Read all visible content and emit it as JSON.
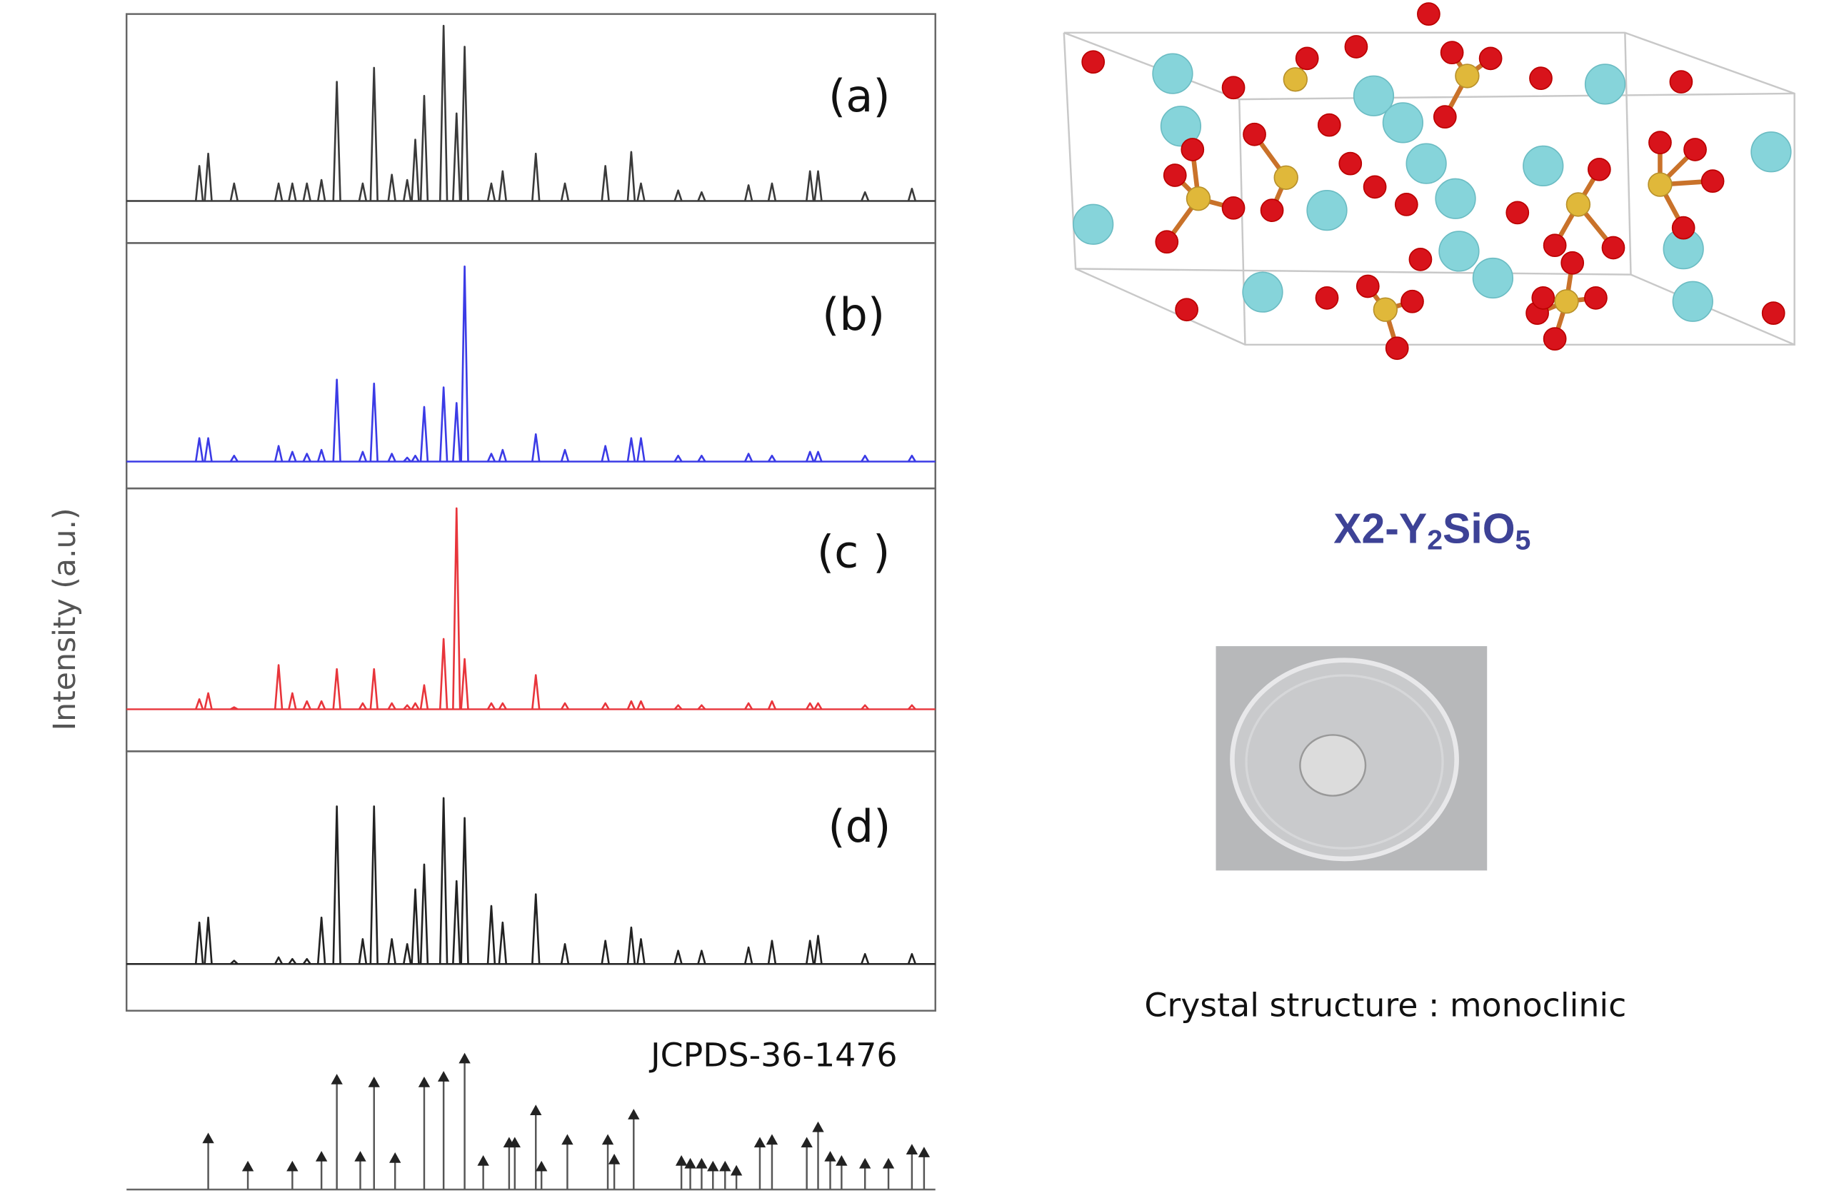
{
  "chart_data": {
    "type": "spectrum",
    "ylabel": "Intensity (a.u.)",
    "xlim": [
      0,
      100
    ],
    "ylim": [
      0,
      100
    ],
    "series": [
      {
        "name": "(a)",
        "color": "#3a3a3a",
        "x": [
          9.0,
          10.1,
          13.3,
          18.8,
          20.5,
          22.3,
          24.1,
          26.0,
          29.2,
          30.6,
          32.8,
          34.7,
          35.7,
          36.8,
          39.2,
          40.8,
          41.8,
          45.1,
          46.5,
          50.6,
          54.2,
          59.2,
          62.4,
          63.6,
          68.2,
          71.1,
          76.9,
          79.8,
          84.5,
          85.5,
          91.3,
          97.1
        ],
        "values": [
          20,
          27,
          10,
          10,
          10,
          10,
          12,
          68,
          10,
          76,
          15,
          12,
          35,
          60,
          100,
          50,
          88,
          10,
          17,
          27,
          10,
          20,
          28,
          10,
          6,
          5,
          9,
          10,
          17,
          17,
          5,
          7
        ]
      },
      {
        "name": "(b)",
        "color": "#3b3be6",
        "x": [
          9.0,
          10.1,
          13.3,
          18.8,
          20.5,
          22.3,
          24.1,
          26.0,
          29.2,
          30.6,
          32.8,
          34.7,
          35.7,
          36.8,
          39.2,
          40.8,
          41.8,
          45.1,
          46.5,
          50.6,
          54.2,
          59.2,
          62.4,
          63.6,
          68.2,
          71.1,
          76.9,
          79.8,
          84.5,
          85.5,
          91.3,
          97.1
        ],
        "values": [
          12,
          12,
          3,
          8,
          5,
          4,
          6,
          42,
          5,
          40,
          4,
          2,
          3,
          28,
          38,
          30,
          100,
          4,
          6,
          14,
          6,
          8,
          12,
          12,
          3,
          3,
          4,
          3,
          5,
          5,
          3,
          3
        ]
      },
      {
        "name": "(c )",
        "color": "#e8353b",
        "x": [
          9.0,
          10.1,
          13.3,
          18.8,
          20.5,
          22.3,
          24.1,
          26.0,
          29.2,
          30.6,
          32.8,
          34.7,
          35.7,
          36.8,
          39.2,
          40.8,
          41.8,
          45.1,
          46.5,
          50.6,
          54.2,
          59.2,
          62.4,
          63.6,
          68.2,
          71.1,
          76.9,
          79.8,
          84.5,
          85.5,
          91.3,
          97.1
        ],
        "values": [
          5,
          8,
          1,
          22,
          8,
          4,
          4,
          20,
          3,
          20,
          3,
          2,
          3,
          12,
          35,
          100,
          25,
          3,
          3,
          17,
          3,
          3,
          4,
          4,
          2,
          2,
          3,
          4,
          3,
          3,
          2,
          2
        ]
      },
      {
        "name": "(d)",
        "color": "#222222",
        "x": [
          9.0,
          10.1,
          13.3,
          18.8,
          20.5,
          22.3,
          24.1,
          26.0,
          29.2,
          30.6,
          32.8,
          34.7,
          35.7,
          36.8,
          39.2,
          40.8,
          41.8,
          45.1,
          46.5,
          50.6,
          54.2,
          59.2,
          62.4,
          63.6,
          68.2,
          71.1,
          76.9,
          79.8,
          84.5,
          85.5,
          91.3,
          97.1
        ],
        "values": [
          25,
          28,
          2,
          4,
          3,
          3,
          28,
          95,
          15,
          95,
          15,
          12,
          45,
          60,
          100,
          50,
          88,
          35,
          25,
          42,
          12,
          14,
          22,
          15,
          8,
          8,
          10,
          14,
          14,
          17,
          6,
          6
        ]
      },
      {
        "name": "JCPDS-36-1476",
        "color": "#222222",
        "style": "stick",
        "x": [
          10.1,
          15.0,
          20.5,
          24.1,
          26.0,
          28.9,
          30.6,
          33.2,
          36.8,
          39.2,
          41.8,
          44.1,
          47.3,
          48.0,
          50.6,
          51.3,
          54.5,
          59.5,
          60.3,
          62.7,
          68.6,
          69.7,
          71.1,
          72.5,
          74.0,
          75.4,
          78.3,
          79.8,
          84.1,
          85.5,
          87.0,
          88.4,
          91.3,
          94.2,
          97.1,
          98.6
        ],
        "values": [
          38,
          18,
          18,
          25,
          80,
          25,
          78,
          24,
          78,
          82,
          95,
          22,
          35,
          35,
          58,
          18,
          37,
          37,
          23,
          55,
          22,
          20,
          20,
          18,
          18,
          15,
          35,
          37,
          35,
          46,
          25,
          22,
          20,
          20,
          30,
          28
        ]
      }
    ]
  },
  "structure": {
    "formula": [
      "X2-Y",
      "2",
      "SiO",
      "5"
    ],
    "caption": "Crystal structure : monoclinic"
  }
}
